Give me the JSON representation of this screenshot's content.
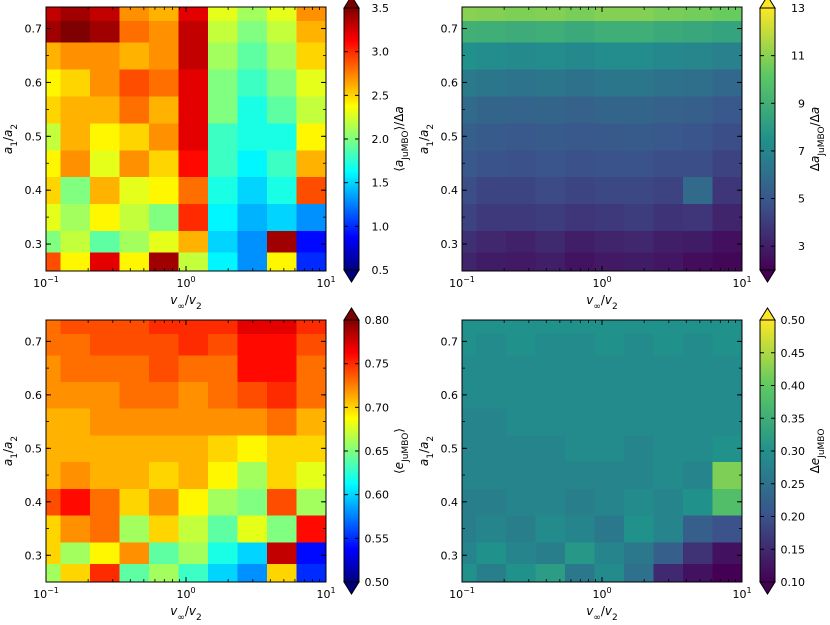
{
  "figure": {
    "panels": [
      {
        "id": "p1",
        "colormap": "jet",
        "xlabel": "v∞/v2",
        "ylabel": "a1/a2",
        "cbar_label": "⟨aJuMBO⟩/Δa",
        "cbar_ticks": [
          "0.5",
          "1.0",
          "1.5",
          "2.0",
          "2.5",
          "3.0",
          "3.5"
        ]
      },
      {
        "id": "p2",
        "colormap": "viridis",
        "xlabel": "v∞/v2",
        "ylabel": "a1/a2",
        "cbar_label": "ΔaJuMBO/Δa",
        "cbar_ticks": [
          "3",
          "5",
          "7",
          "9",
          "11",
          "13"
        ]
      },
      {
        "id": "p3",
        "colormap": "jet",
        "xlabel": "v∞/v2",
        "ylabel": "a1/a2",
        "cbar_label": "⟨eJuMBO⟩",
        "cbar_ticks": [
          "0.50",
          "0.55",
          "0.60",
          "0.65",
          "0.70",
          "0.75",
          "0.80"
        ]
      },
      {
        "id": "p4",
        "colormap": "viridis",
        "xlabel": "v∞/v2",
        "ylabel": "a1/a2",
        "cbar_label": "ΔeJuMBO",
        "cbar_ticks": [
          "0.10",
          "0.15",
          "0.20",
          "0.25",
          "0.30",
          "0.35",
          "0.40",
          "0.45",
          "0.50"
        ]
      }
    ],
    "xticks": [
      "10−1",
      "100",
      "101"
    ],
    "yticks": [
      "0.3",
      "0.4",
      "0.5",
      "0.6",
      "0.7"
    ]
  },
  "chart_data": [
    {
      "type": "heatmap",
      "xlabel": "v∞/v2",
      "ylabel": "a1/a2",
      "colorbar_label": "⟨aJuMBO⟩/Δa",
      "x_scale": "log",
      "xlim": [
        0.1,
        10
      ],
      "ylim": [
        0.25,
        0.74
      ],
      "clim": [
        0.5,
        3.5
      ],
      "colormap": "jet",
      "x": [
        0.1,
        0.162,
        0.264,
        0.428,
        0.695,
        1.13,
        1.83,
        2.98,
        4.83,
        7.85
      ],
      "y": [
        0.27,
        0.3,
        0.35,
        0.4,
        0.45,
        0.5,
        0.55,
        0.6,
        0.65,
        0.7,
        0.73
      ],
      "z": [
        [
          2.9,
          2.4,
          3.2,
          2.4,
          3.4,
          2.2,
          1.6,
          1.3,
          2.4,
          1.0
        ],
        [
          2.0,
          2.2,
          1.9,
          2.1,
          2.3,
          2.6,
          1.5,
          1.3,
          3.4,
          0.9
        ],
        [
          2.3,
          2.1,
          2.4,
          2.2,
          2.0,
          3.0,
          1.6,
          1.4,
          1.5,
          1.3
        ],
        [
          2.5,
          2.0,
          2.6,
          2.3,
          2.4,
          2.8,
          1.7,
          1.5,
          1.7,
          2.9
        ],
        [
          2.4,
          2.7,
          2.3,
          2.7,
          2.5,
          3.1,
          1.8,
          1.6,
          1.8,
          2.6
        ],
        [
          2.2,
          2.6,
          2.4,
          2.5,
          2.7,
          3.2,
          1.8,
          1.7,
          1.7,
          2.4
        ],
        [
          2.5,
          2.6,
          2.6,
          2.8,
          2.6,
          3.2,
          2.0,
          1.7,
          1.9,
          2.2
        ],
        [
          2.4,
          2.5,
          2.7,
          2.9,
          2.8,
          3.2,
          2.0,
          1.8,
          2.0,
          2.3
        ],
        [
          2.6,
          2.7,
          2.7,
          2.6,
          2.7,
          3.3,
          2.1,
          1.9,
          2.1,
          2.5
        ],
        [
          3.4,
          3.5,
          3.4,
          2.8,
          2.7,
          3.3,
          2.2,
          2.0,
          2.2,
          2.6
        ],
        [
          3.3,
          3.4,
          3.3,
          2.7,
          2.6,
          3.2,
          2.3,
          2.1,
          2.3,
          2.7
        ]
      ]
    },
    {
      "type": "heatmap",
      "xlabel": "v∞/v2",
      "ylabel": "a1/a2",
      "colorbar_label": "ΔaJuMBO/Δa",
      "x_scale": "log",
      "xlim": [
        0.1,
        10
      ],
      "ylim": [
        0.25,
        0.74
      ],
      "clim": [
        2,
        13
      ],
      "colormap": "viridis",
      "x": [
        0.1,
        0.162,
        0.264,
        0.428,
        0.695,
        1.13,
        1.83,
        2.98,
        4.83,
        7.85
      ],
      "y": [
        0.27,
        0.3,
        0.35,
        0.4,
        0.45,
        0.5,
        0.55,
        0.6,
        0.65,
        0.7,
        0.73
      ],
      "z": [
        [
          3.2,
          2.9,
          2.8,
          3.0,
          2.6,
          2.8,
          2.9,
          2.7,
          2.4,
          2.2
        ],
        [
          3.6,
          3.3,
          3.1,
          3.4,
          3.0,
          3.2,
          3.3,
          3.0,
          2.9,
          2.5
        ],
        [
          4.2,
          3.9,
          3.9,
          4.0,
          3.8,
          3.9,
          4.0,
          3.7,
          3.8,
          3.2
        ],
        [
          4.6,
          4.3,
          4.3,
          4.5,
          4.3,
          4.4,
          4.4,
          4.2,
          5.8,
          3.8
        ],
        [
          5.0,
          4.8,
          4.7,
          4.9,
          4.7,
          4.8,
          4.8,
          4.6,
          4.6,
          4.2
        ],
        [
          5.3,
          5.2,
          5.0,
          5.2,
          5.0,
          5.1,
          5.2,
          5.0,
          4.9,
          4.6
        ],
        [
          5.8,
          5.6,
          5.5,
          5.6,
          5.4,
          5.6,
          5.6,
          5.4,
          5.3,
          5.0
        ],
        [
          6.5,
          6.3,
          6.2,
          6.3,
          6.1,
          6.3,
          6.3,
          6.1,
          6.0,
          5.7
        ],
        [
          7.5,
          7.3,
          7.2,
          7.3,
          7.1,
          7.3,
          7.3,
          7.1,
          7.0,
          6.8
        ],
        [
          9.0,
          8.9,
          8.8,
          8.9,
          8.7,
          8.9,
          8.9,
          8.7,
          8.6,
          8.4
        ],
        [
          11.0,
          10.9,
          10.8,
          10.9,
          10.7,
          10.9,
          10.9,
          10.7,
          10.6,
          10.4
        ]
      ]
    },
    {
      "type": "heatmap",
      "xlabel": "v∞/v2",
      "ylabel": "a1/a2",
      "colorbar_label": "⟨eJuMBO⟩",
      "x_scale": "log",
      "xlim": [
        0.1,
        10
      ],
      "ylim": [
        0.25,
        0.74
      ],
      "clim": [
        0.5,
        0.8
      ],
      "colormap": "jet",
      "x": [
        0.1,
        0.162,
        0.264,
        0.428,
        0.695,
        1.13,
        1.83,
        2.98,
        4.83,
        7.85
      ],
      "y": [
        0.27,
        0.3,
        0.35,
        0.4,
        0.45,
        0.5,
        0.55,
        0.6,
        0.65,
        0.7,
        0.73
      ],
      "z": [
        [
          0.66,
          0.7,
          0.75,
          0.64,
          0.66,
          0.63,
          0.6,
          0.58,
          0.7,
          0.55
        ],
        [
          0.7,
          0.66,
          0.69,
          0.72,
          0.64,
          0.66,
          0.62,
          0.6,
          0.78,
          0.54
        ],
        [
          0.7,
          0.72,
          0.73,
          0.66,
          0.7,
          0.67,
          0.64,
          0.68,
          0.65,
          0.76
        ],
        [
          0.74,
          0.76,
          0.73,
          0.7,
          0.72,
          0.69,
          0.66,
          0.65,
          0.74,
          0.66
        ],
        [
          0.71,
          0.72,
          0.71,
          0.71,
          0.7,
          0.71,
          0.69,
          0.66,
          0.7,
          0.68
        ],
        [
          0.71,
          0.71,
          0.71,
          0.71,
          0.71,
          0.71,
          0.7,
          0.69,
          0.7,
          0.7
        ],
        [
          0.71,
          0.71,
          0.72,
          0.72,
          0.72,
          0.72,
          0.72,
          0.72,
          0.73,
          0.71
        ],
        [
          0.72,
          0.72,
          0.72,
          0.73,
          0.73,
          0.72,
          0.73,
          0.74,
          0.75,
          0.73
        ],
        [
          0.72,
          0.73,
          0.73,
          0.73,
          0.74,
          0.73,
          0.73,
          0.76,
          0.76,
          0.73
        ],
        [
          0.73,
          0.73,
          0.74,
          0.74,
          0.74,
          0.75,
          0.74,
          0.76,
          0.76,
          0.74
        ],
        [
          0.73,
          0.74,
          0.74,
          0.74,
          0.75,
          0.75,
          0.75,
          0.77,
          0.77,
          0.75
        ]
      ]
    },
    {
      "type": "heatmap",
      "xlabel": "v∞/v2",
      "ylabel": "a1/a2",
      "colorbar_label": "ΔeJuMBO",
      "x_scale": "log",
      "xlim": [
        0.1,
        10
      ],
      "ylim": [
        0.25,
        0.74
      ],
      "clim": [
        0.1,
        0.5
      ],
      "colormap": "viridis",
      "x": [
        0.1,
        0.162,
        0.264,
        0.428,
        0.695,
        1.13,
        1.83,
        2.98,
        4.83,
        7.85
      ],
      "y": [
        0.27,
        0.3,
        0.35,
        0.4,
        0.45,
        0.5,
        0.55,
        0.6,
        0.65,
        0.7,
        0.73
      ],
      "z": [
        [
          0.3,
          0.27,
          0.3,
          0.32,
          0.26,
          0.29,
          0.25,
          0.15,
          0.12,
          0.08
        ],
        [
          0.28,
          0.3,
          0.28,
          0.27,
          0.31,
          0.28,
          0.26,
          0.22,
          0.16,
          0.12
        ],
        [
          0.27,
          0.28,
          0.27,
          0.29,
          0.28,
          0.26,
          0.3,
          0.28,
          0.22,
          0.2
        ],
        [
          0.27,
          0.27,
          0.28,
          0.28,
          0.27,
          0.28,
          0.29,
          0.28,
          0.3,
          0.38
        ],
        [
          0.28,
          0.28,
          0.28,
          0.28,
          0.28,
          0.28,
          0.28,
          0.29,
          0.28,
          0.42
        ],
        [
          0.28,
          0.28,
          0.28,
          0.28,
          0.29,
          0.29,
          0.28,
          0.29,
          0.29,
          0.3
        ],
        [
          0.28,
          0.28,
          0.29,
          0.29,
          0.29,
          0.29,
          0.29,
          0.29,
          0.29,
          0.29
        ],
        [
          0.29,
          0.29,
          0.29,
          0.29,
          0.29,
          0.29,
          0.29,
          0.29,
          0.29,
          0.29
        ],
        [
          0.29,
          0.29,
          0.29,
          0.29,
          0.29,
          0.29,
          0.29,
          0.29,
          0.29,
          0.29
        ],
        [
          0.3,
          0.29,
          0.3,
          0.29,
          0.29,
          0.3,
          0.29,
          0.3,
          0.29,
          0.3
        ],
        [
          0.3,
          0.3,
          0.3,
          0.3,
          0.3,
          0.3,
          0.3,
          0.3,
          0.3,
          0.3
        ]
      ]
    }
  ]
}
